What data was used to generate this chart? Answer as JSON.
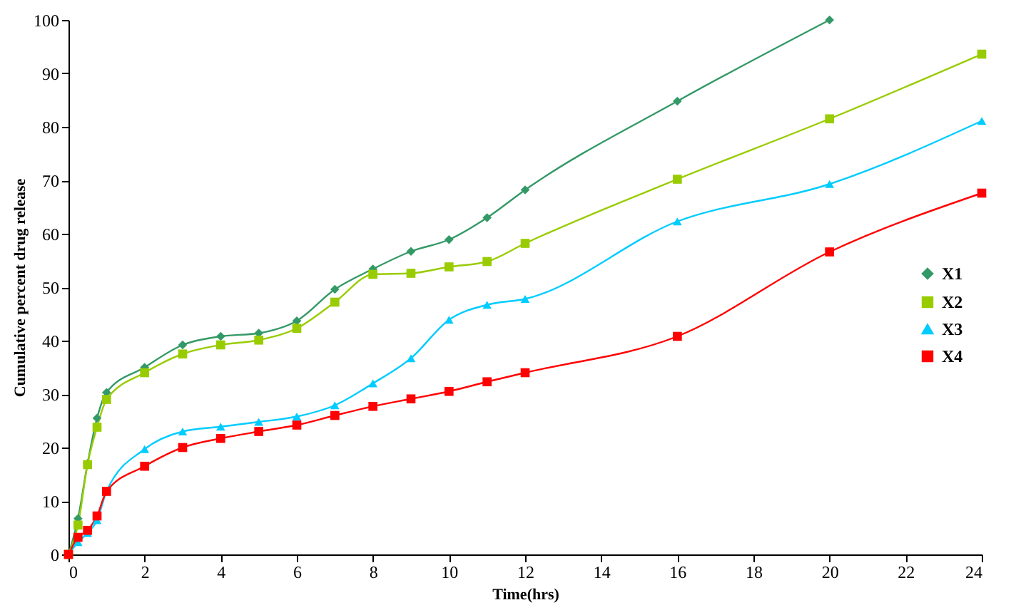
{
  "chart_data": {
    "type": "line",
    "xlabel": "Time(hrs)",
    "ylabel": "Cumulative percent drug release",
    "x": [
      0,
      0.25,
      0.5,
      0.75,
      1,
      2,
      3,
      4,
      5,
      6,
      7,
      8,
      9,
      10,
      11,
      12,
      16,
      20,
      24
    ],
    "series": [
      {
        "name": "X1",
        "color": "#339966",
        "marker": "diamond",
        "x": [
          0,
          0.25,
          0.5,
          0.75,
          1,
          2,
          3,
          4,
          5,
          6,
          7,
          8,
          9,
          10,
          11,
          12,
          16,
          20
        ],
        "values": [
          0,
          6.7,
          17,
          25.5,
          30.3,
          35,
          39.2,
          40.8,
          41.4,
          43.7,
          49.6,
          53.4,
          56.7,
          58.9,
          63,
          68.2,
          84.8,
          100
        ]
      },
      {
        "name": "X2",
        "color": "#99cc00",
        "marker": "square",
        "values": [
          0,
          5.5,
          16.8,
          23.8,
          29,
          34,
          37.5,
          39.2,
          40.1,
          42.3,
          47.2,
          52.4,
          52.6,
          53.8,
          54.8,
          58.2,
          70.2,
          81.5,
          93.6
        ]
      },
      {
        "name": "X3",
        "color": "#00ccff",
        "marker": "triangle",
        "values": [
          0,
          2.3,
          4,
          6.4,
          11.8,
          19.7,
          23,
          23.9,
          24.8,
          25.8,
          27.9,
          32,
          36.7,
          43.9,
          46.7,
          47.8,
          62.3,
          69.3,
          81.1
        ]
      },
      {
        "name": "X4",
        "color": "#ff0000",
        "marker": "square",
        "values": [
          0,
          3.2,
          4.5,
          7.2,
          11.8,
          16.5,
          20,
          21.7,
          23,
          24.2,
          26,
          27.7,
          29.1,
          30.5,
          32.3,
          34,
          40.8,
          56.6,
          67.6
        ]
      }
    ],
    "xlim": [
      0,
      24
    ],
    "xticks": [
      0,
      2,
      4,
      6,
      8,
      10,
      12,
      14,
      16,
      18,
      20,
      22,
      24
    ],
    "ylim": [
      0,
      100
    ],
    "yticks": [
      0,
      10,
      20,
      30,
      40,
      50,
      60,
      70,
      80,
      90,
      100
    ],
    "grid": false,
    "legend": "right"
  }
}
